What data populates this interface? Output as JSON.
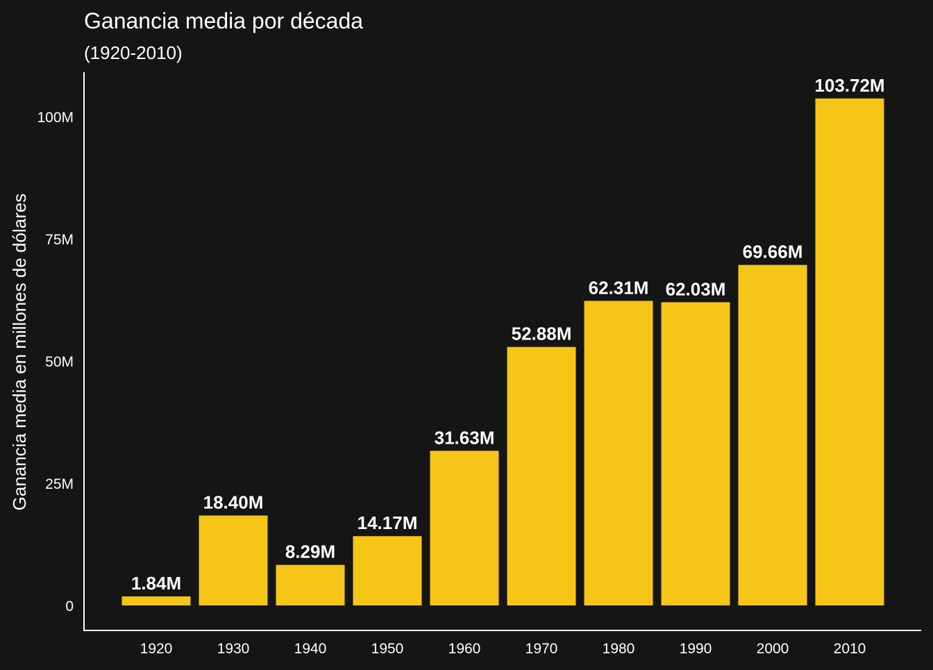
{
  "colors": {
    "background": "#151515",
    "bar": "#f5c518",
    "text": "#ffffff",
    "axis": "#ffffff"
  },
  "chart_data": {
    "type": "bar",
    "title": "Ganancia media por década",
    "subtitle": "(1920-2010)",
    "xlabel": "",
    "ylabel": "Ganancia media en millones de dólares",
    "categories": [
      "1920",
      "1930",
      "1940",
      "1950",
      "1960",
      "1970",
      "1980",
      "1990",
      "2000",
      "2010"
    ],
    "values": [
      1.84,
      18.4,
      8.29,
      14.17,
      31.63,
      52.88,
      62.31,
      62.03,
      69.66,
      103.72
    ],
    "value_labels": [
      "1.84M",
      "18.40M",
      "8.29M",
      "14.17M",
      "31.63M",
      "52.88M",
      "62.31M",
      "62.03M",
      "69.66M",
      "103.72M"
    ],
    "ylim": [
      0,
      108
    ],
    "y_ticks": [
      0,
      25,
      50,
      75,
      100
    ],
    "y_tick_labels": [
      "0",
      "25M",
      "50M",
      "75M",
      "100M"
    ],
    "grid": false,
    "legend": "none"
  }
}
